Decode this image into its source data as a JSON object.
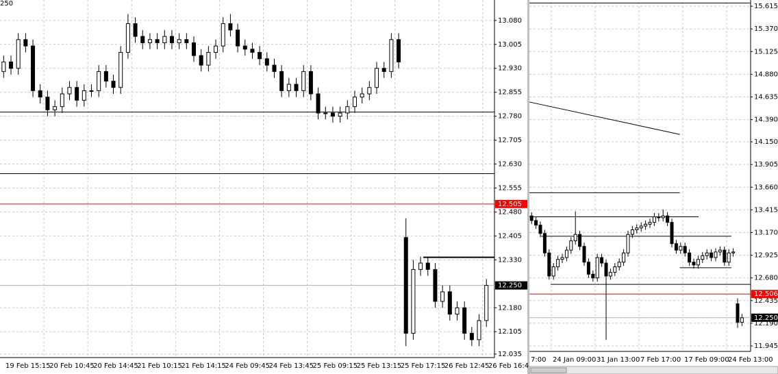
{
  "chart_data": [
    {
      "type": "candlestick",
      "title": "250",
      "categories": [
        "19 Feb 15:15",
        null,
        null,
        null,
        null,
        null,
        "20 Feb 10:45",
        null,
        null,
        null,
        null,
        null,
        "20 Feb 14:45",
        null,
        null,
        null,
        null,
        null,
        "21 Feb 10:15",
        null,
        null,
        null,
        null,
        null,
        "21 Feb 14:15",
        null,
        null,
        null,
        null,
        null,
        "24 Feb 09:45",
        null,
        null,
        null,
        null,
        null,
        "24 Feb 13:45",
        null,
        null,
        null,
        null,
        null,
        "25 Feb 09:15",
        null,
        null,
        null,
        null,
        null,
        "25 Feb 13:15",
        null,
        null,
        null,
        null,
        null,
        "25 Feb 17:15",
        null,
        null,
        null,
        null,
        null,
        "26 Feb 12:45",
        null,
        null,
        null,
        null,
        null,
        "26 Feb 16:4"
      ],
      "open": [
        12.92,
        12.95,
        12.93,
        13.02,
        13.0,
        12.86,
        12.84,
        12.8,
        12.81,
        12.85,
        12.87,
        12.83,
        12.86,
        12.86,
        12.92,
        12.89,
        12.87,
        12.98,
        13.07,
        13.03,
        13.01,
        13.02,
        13.01,
        13.03,
        13.01,
        13.02,
        13.01,
        12.97,
        12.94,
        12.98,
        13.0,
        13.07,
        13.05,
        13.0,
        12.99,
        12.98,
        12.96,
        12.94,
        12.92,
        12.86,
        12.88,
        12.86,
        12.92,
        12.85,
        12.79,
        12.79,
        12.78,
        12.79,
        12.81,
        12.84,
        12.85,
        12.87,
        12.93,
        12.92,
        13.02,
        12.4,
        12.1,
        12.3,
        12.32,
        12.3,
        12.2,
        12.23,
        12.16,
        12.18,
        12.1,
        12.08,
        12.14
      ],
      "high": [
        12.97,
        12.97,
        13.04,
        13.04,
        13.02,
        12.88,
        12.86,
        12.83,
        12.87,
        12.89,
        12.89,
        12.88,
        12.88,
        12.94,
        12.94,
        12.91,
        13.0,
        13.1,
        13.09,
        13.05,
        13.04,
        13.04,
        13.05,
        13.05,
        13.04,
        13.04,
        13.03,
        12.99,
        13.0,
        13.02,
        13.09,
        13.1,
        13.07,
        13.02,
        13.01,
        13.0,
        12.98,
        12.96,
        12.94,
        12.9,
        12.9,
        12.94,
        12.94,
        12.87,
        12.81,
        12.81,
        12.81,
        12.83,
        12.86,
        12.87,
        12.89,
        12.95,
        12.95,
        13.04,
        13.04,
        12.46,
        12.33,
        12.34,
        12.34,
        12.32,
        12.25,
        12.25,
        12.2,
        12.2,
        12.12,
        12.16,
        12.27
      ],
      "low": [
        12.9,
        12.91,
        12.91,
        12.98,
        12.84,
        12.82,
        12.78,
        12.78,
        12.79,
        12.83,
        12.81,
        12.81,
        12.84,
        12.84,
        12.87,
        12.85,
        12.85,
        12.96,
        13.01,
        12.99,
        12.99,
        12.99,
        12.99,
        12.99,
        12.99,
        12.99,
        12.95,
        12.92,
        12.92,
        12.96,
        12.98,
        13.03,
        12.98,
        12.97,
        12.96,
        12.94,
        12.92,
        12.9,
        12.84,
        12.84,
        12.84,
        12.84,
        12.83,
        12.77,
        12.77,
        12.76,
        12.76,
        12.77,
        12.79,
        12.82,
        12.83,
        12.85,
        12.9,
        12.9,
        12.93,
        12.06,
        12.08,
        12.28,
        12.28,
        12.18,
        12.18,
        12.14,
        12.14,
        12.08,
        12.06,
        12.06,
        12.12
      ],
      "close": [
        12.95,
        12.93,
        13.02,
        13.0,
        12.86,
        12.84,
        12.8,
        12.81,
        12.85,
        12.87,
        12.83,
        12.86,
        12.86,
        12.92,
        12.89,
        12.87,
        12.98,
        13.07,
        13.03,
        13.01,
        13.02,
        13.01,
        13.03,
        13.01,
        13.02,
        13.01,
        12.97,
        12.94,
        12.98,
        13.0,
        13.07,
        13.05,
        13.0,
        12.99,
        12.98,
        12.96,
        12.94,
        12.92,
        12.86,
        12.88,
        12.86,
        12.92,
        12.85,
        12.79,
        12.79,
        12.78,
        12.79,
        12.81,
        12.84,
        12.85,
        12.87,
        12.93,
        12.92,
        13.02,
        12.95,
        12.1,
        12.3,
        12.32,
        12.3,
        12.2,
        12.23,
        12.16,
        12.18,
        12.1,
        12.08,
        12.14,
        12.25
      ],
      "bull_color": "#ffffff",
      "bear_color": "#000000",
      "ylim": [
        12.024,
        13.144
      ],
      "yticks": [
        {
          "value": 13.08,
          "label": "13.080"
        },
        13.005,
        {
          "value": 12.93,
          "label": "12.930"
        },
        12.855,
        {
          "value": 12.78,
          "label": "12.780"
        },
        12.705,
        {
          "value": 12.63,
          "label": "12.630"
        },
        12.555,
        {
          "value": 12.48,
          "label": "12.480"
        },
        12.405,
        {
          "value": 12.33,
          "label": "12.330"
        },
        {
          "value": 12.18,
          "label": "12.180"
        },
        12.105,
        12.035
      ],
      "grid": true,
      "lines": [
        {
          "value": 12.793
        },
        {
          "value": 12.6
        },
        {
          "value": 12.338
        }
      ],
      "price_labels": [
        {
          "value": 12.505,
          "label": "12.505",
          "color": "#ff0000"
        },
        {
          "value": 12.25,
          "label": "12.250",
          "color": "#000000"
        }
      ]
    },
    {
      "type": "candlestick",
      "categories": [
        "7:00",
        null,
        null,
        null,
        null,
        "24 Jan 09:00",
        null,
        null,
        null,
        null,
        null,
        null,
        null,
        null,
        null,
        "31 Jan 13:00",
        null,
        null,
        null,
        null,
        null,
        null,
        null,
        null,
        null,
        "7 Feb 17:00",
        null,
        null,
        null,
        null,
        null,
        null,
        null,
        null,
        null,
        "17 Feb 09:00",
        null,
        null,
        null,
        null,
        null,
        null,
        null,
        null,
        null,
        "24 Feb 13:00",
        null,
        null,
        null
      ],
      "open": [
        13.35,
        13.3,
        13.25,
        13.16,
        12.95,
        12.7,
        12.8,
        12.88,
        12.9,
        12.98,
        13.08,
        13.15,
        13.02,
        12.85,
        12.72,
        12.68,
        12.9,
        12.84,
        12.7,
        12.74,
        12.8,
        12.85,
        12.95,
        13.15,
        13.2,
        13.22,
        13.24,
        13.26,
        13.28,
        13.34,
        13.33,
        13.35,
        13.28,
        13.05,
        12.98,
        13.02,
        12.95,
        12.85,
        12.82,
        12.88,
        12.92,
        12.95,
        12.9,
        12.96,
        12.98,
        12.85,
        12.95,
        12.4,
        12.2
      ],
      "high": [
        13.39,
        13.34,
        13.29,
        13.2,
        12.99,
        12.84,
        12.92,
        12.94,
        13.02,
        13.12,
        13.4,
        13.19,
        13.06,
        12.89,
        12.76,
        12.94,
        12.94,
        12.88,
        12.78,
        12.84,
        12.89,
        12.99,
        13.19,
        13.24,
        13.26,
        13.28,
        13.3,
        13.32,
        13.38,
        13.38,
        13.42,
        13.39,
        13.32,
        13.09,
        13.06,
        13.06,
        12.99,
        12.89,
        12.92,
        12.96,
        12.99,
        12.99,
        13.0,
        13.02,
        13.02,
        12.99,
        13.0,
        12.46,
        12.29
      ],
      "low": [
        13.26,
        13.21,
        13.12,
        12.91,
        12.66,
        12.66,
        12.76,
        12.84,
        12.86,
        12.94,
        13.04,
        12.98,
        12.81,
        12.68,
        12.64,
        12.64,
        12.8,
        12.01,
        12.66,
        12.7,
        12.76,
        12.81,
        12.91,
        13.11,
        13.16,
        13.18,
        13.2,
        13.22,
        13.24,
        13.29,
        13.29,
        13.24,
        13.01,
        12.94,
        12.94,
        12.91,
        12.81,
        12.78,
        12.78,
        12.84,
        12.88,
        12.86,
        12.86,
        12.92,
        12.81,
        12.81,
        12.91,
        12.14,
        12.16
      ],
      "close": [
        13.3,
        13.25,
        13.16,
        12.95,
        12.7,
        12.8,
        12.88,
        12.9,
        12.98,
        13.08,
        13.15,
        13.02,
        12.85,
        12.72,
        12.68,
        12.9,
        12.84,
        12.7,
        12.74,
        12.8,
        12.85,
        12.95,
        13.15,
        13.2,
        13.22,
        13.24,
        13.26,
        13.28,
        13.34,
        13.33,
        13.35,
        13.28,
        13.05,
        12.98,
        13.02,
        12.95,
        12.85,
        12.82,
        12.88,
        12.92,
        12.95,
        12.9,
        12.96,
        12.98,
        12.85,
        12.95,
        12.96,
        12.2,
        12.25
      ],
      "bull_color": "#ffffff",
      "bear_color": "#000000",
      "ylim": [
        11.886,
        15.66
      ],
      "yticks": [
        15.615,
        {
          "value": 15.37,
          "label": "15.370"
        },
        15.125,
        {
          "value": 14.88,
          "label": "14.880"
        },
        14.635,
        {
          "value": 14.39,
          "label": "14.390"
        },
        {
          "value": 14.15,
          "label": "14.150"
        },
        13.905,
        {
          "value": 13.66,
          "label": "13.660"
        },
        13.415,
        {
          "value": 13.17,
          "label": "13.170"
        },
        12.925,
        {
          "value": 12.68,
          "label": "12.680"
        },
        12.435,
        {
          "value": 12.19,
          "label": "12.190"
        },
        11.945
      ],
      "grid": true,
      "lines": [
        {
          "value": 15.65
        },
        {
          "value": 13.6
        },
        {
          "value": 13.34
        },
        {
          "value": 13.13
        },
        {
          "value": 12.79
        },
        {
          "value": 12.61
        }
      ],
      "trendline": [
        14.58,
        14.23
      ],
      "price_labels": [
        {
          "value": 12.506,
          "label": "12.506",
          "color": "#ff0000"
        },
        {
          "value": 12.25,
          "label": "12.250",
          "color": "#000000"
        }
      ]
    }
  ]
}
